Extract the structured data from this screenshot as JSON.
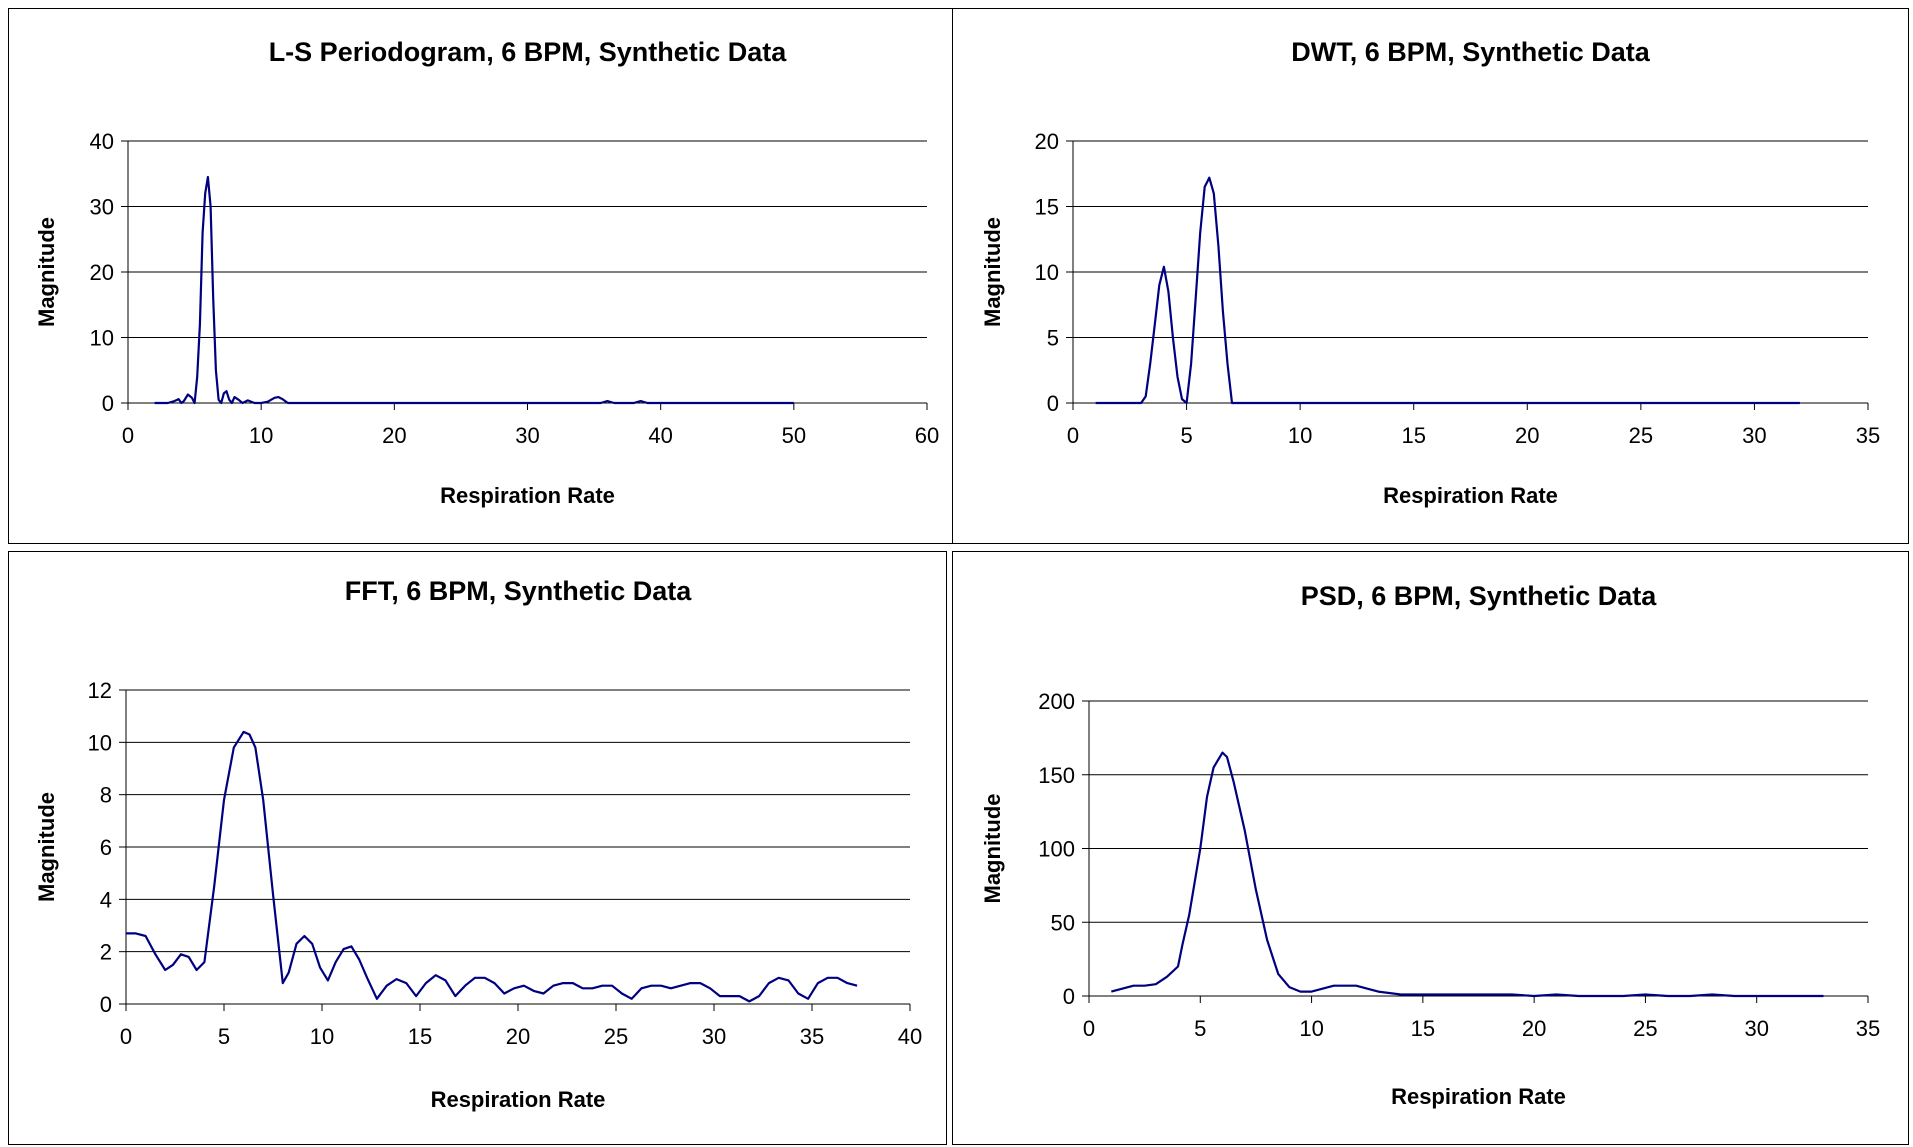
{
  "chart_data": [
    {
      "type": "line",
      "title": "L-S Periodogram, 6 BPM, Synthetic Data",
      "xlabel": "Respiration Rate",
      "ylabel": "Magnitude",
      "xlim": [
        0,
        60
      ],
      "ylim": [
        0,
        40
      ],
      "xticks": [
        0,
        10,
        20,
        30,
        40,
        50,
        60
      ],
      "yticks": [
        0,
        10,
        20,
        30,
        40
      ],
      "grid": "horizontal",
      "legend": "none",
      "color": "#000080",
      "series": [
        {
          "x": [
            2.0,
            3.0,
            3.5,
            3.8,
            4.0,
            4.2,
            4.5,
            4.8,
            5.0,
            5.2,
            5.4,
            5.6,
            5.8,
            6.0,
            6.2,
            6.4,
            6.6,
            6.8,
            7.0,
            7.2,
            7.4,
            7.6,
            7.8,
            8.0,
            8.3,
            8.6,
            9.0,
            9.5,
            10.0,
            10.5,
            11.0,
            11.3,
            11.6,
            12.0,
            12.5,
            13.0,
            20.0,
            30.0,
            35.5,
            36.0,
            36.5,
            38.0,
            38.5,
            39.0,
            45.0,
            50.0
          ],
          "y": [
            0,
            0,
            0.3,
            0.6,
            0,
            0.3,
            1.3,
            0.8,
            0,
            4,
            12,
            26,
            32,
            34.5,
            30,
            16,
            5,
            0.5,
            0,
            1.5,
            1.8,
            0.5,
            0,
            0.9,
            0.5,
            0,
            0.4,
            0,
            0,
            0.2,
            0.8,
            0.9,
            0.6,
            0,
            0,
            0,
            0,
            0,
            0,
            0.3,
            0,
            0,
            0.3,
            0,
            0,
            0
          ]
        }
      ]
    },
    {
      "type": "line",
      "title": "DWT, 6 BPM, Synthetic Data",
      "xlabel": "Respiration Rate",
      "ylabel": "Magnitude",
      "xlim": [
        0,
        35
      ],
      "ylim": [
        0,
        20
      ],
      "xticks": [
        0,
        5,
        10,
        15,
        20,
        25,
        30,
        35
      ],
      "yticks": [
        0,
        5,
        10,
        15,
        20
      ],
      "grid": "horizontal",
      "legend": "none",
      "color": "#000080",
      "series": [
        {
          "x": [
            1,
            2,
            3,
            3.2,
            3.4,
            3.6,
            3.8,
            4.0,
            4.2,
            4.4,
            4.6,
            4.8,
            5.0,
            5.2,
            5.4,
            5.6,
            5.8,
            6.0,
            6.2,
            6.4,
            6.6,
            6.8,
            7.0,
            8,
            10,
            15,
            20,
            25,
            30,
            32
          ],
          "y": [
            0,
            0,
            0,
            0.5,
            3,
            6,
            9,
            10.4,
            8.5,
            5,
            2,
            0.3,
            0,
            3,
            8,
            13,
            16.5,
            17.2,
            16,
            12,
            7,
            3,
            0,
            0,
            0,
            0,
            0,
            0,
            0,
            0
          ]
        }
      ]
    },
    {
      "type": "line",
      "title": "FFT, 6 BPM, Synthetic Data",
      "xlabel": "Respiration Rate",
      "ylabel": "Magnitude",
      "xlim": [
        0,
        40
      ],
      "ylim": [
        0,
        12
      ],
      "xticks": [
        0,
        5,
        10,
        15,
        20,
        25,
        30,
        35,
        40
      ],
      "yticks": [
        0,
        2,
        4,
        6,
        8,
        10,
        12
      ],
      "grid": "horizontal",
      "legend": "none",
      "color": "#000080",
      "series": [
        {
          "x": [
            0,
            0.5,
            1.0,
            1.5,
            2.0,
            2.4,
            2.8,
            3.2,
            3.6,
            4.0,
            4.5,
            5.0,
            5.5,
            6.0,
            6.3,
            6.6,
            7.0,
            7.5,
            8.0,
            8.3,
            8.7,
            9.1,
            9.5,
            9.9,
            10.3,
            10.7,
            11.1,
            11.5,
            11.9,
            12.3,
            12.8,
            13.3,
            13.8,
            14.3,
            14.8,
            15.3,
            15.8,
            16.3,
            16.8,
            17.3,
            17.8,
            18.3,
            18.8,
            19.3,
            19.8,
            20.3,
            20.8,
            21.3,
            21.8,
            22.3,
            22.8,
            23.3,
            23.8,
            24.3,
            24.8,
            25.3,
            25.8,
            26.3,
            26.8,
            27.3,
            27.8,
            28.3,
            28.8,
            29.3,
            29.8,
            30.3,
            30.8,
            31.3,
            31.8,
            32.3,
            32.8,
            33.3,
            33.8,
            34.3,
            34.8,
            35.3,
            35.8,
            36.3,
            36.8,
            37.3
          ],
          "y": [
            2.7,
            2.7,
            2.6,
            1.9,
            1.3,
            1.5,
            1.9,
            1.8,
            1.3,
            1.6,
            4.5,
            7.8,
            9.8,
            10.4,
            10.3,
            9.8,
            7.8,
            4.2,
            0.8,
            1.2,
            2.3,
            2.6,
            2.3,
            1.4,
            0.9,
            1.6,
            2.1,
            2.2,
            1.7,
            1.0,
            0.2,
            0.7,
            0.95,
            0.8,
            0.3,
            0.8,
            1.1,
            0.9,
            0.3,
            0.7,
            1.0,
            1.0,
            0.8,
            0.4,
            0.6,
            0.7,
            0.5,
            0.4,
            0.7,
            0.8,
            0.8,
            0.6,
            0.6,
            0.7,
            0.7,
            0.4,
            0.2,
            0.6,
            0.7,
            0.7,
            0.6,
            0.7,
            0.8,
            0.8,
            0.6,
            0.3,
            0.3,
            0.3,
            0.1,
            0.3,
            0.8,
            1.0,
            0.9,
            0.4,
            0.2,
            0.8,
            1.0,
            1.0,
            0.8,
            0.7
          ]
        }
      ]
    },
    {
      "type": "line",
      "title": "PSD, 6 BPM, Synthetic Data",
      "xlabel": "Respiration Rate",
      "ylabel": "Magnitude",
      "xlim": [
        0,
        35
      ],
      "ylim": [
        0,
        200
      ],
      "xticks": [
        0,
        5,
        10,
        15,
        20,
        25,
        30,
        35
      ],
      "yticks": [
        0,
        50,
        100,
        150,
        200
      ],
      "grid": "horizontal",
      "legend": "none",
      "color": "#000080",
      "series": [
        {
          "x": [
            1,
            2,
            2.5,
            3,
            3.5,
            4,
            4.2,
            4.5,
            5,
            5.3,
            5.6,
            6.0,
            6.2,
            6.5,
            7,
            7.5,
            8,
            8.5,
            9,
            9.5,
            10,
            11,
            12,
            13,
            14,
            15,
            19,
            20,
            21,
            22,
            24,
            25,
            26,
            27,
            28,
            29,
            30,
            33
          ],
          "y": [
            3,
            7,
            7,
            8,
            13,
            20,
            35,
            55,
            100,
            135,
            155,
            165,
            162,
            145,
            112,
            72,
            38,
            15,
            6,
            3,
            3,
            7,
            7,
            3,
            1,
            1,
            1,
            0,
            1,
            0,
            0,
            1,
            0,
            0,
            1,
            0,
            0,
            0
          ]
        }
      ]
    }
  ]
}
